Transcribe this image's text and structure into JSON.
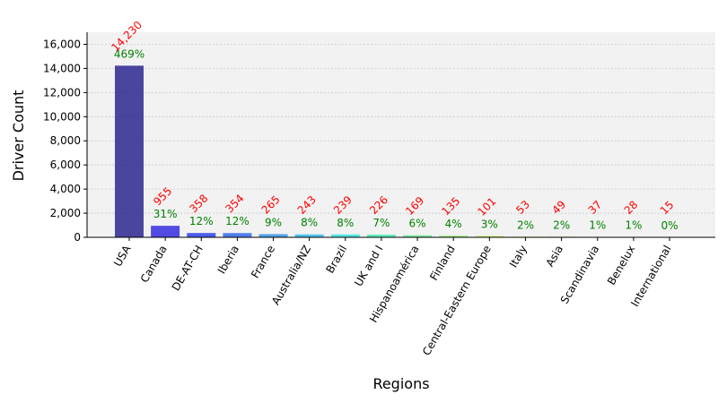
{
  "chart_data": {
    "type": "bar",
    "title": "",
    "xlabel": "Regions",
    "ylabel": "Driver Count",
    "ylim": [
      0,
      17000
    ],
    "yticks": [
      0,
      2000,
      4000,
      6000,
      8000,
      10000,
      12000,
      14000,
      16000
    ],
    "ytick_labels": [
      "0",
      "2,000",
      "4,000",
      "6,000",
      "8,000",
      "10,000",
      "12,000",
      "14,000",
      "16,000"
    ],
    "grid": true,
    "categories": [
      "USA",
      "Canada",
      "DE-AT-CH",
      "Iberia",
      "France",
      "Australia/NZ",
      "Brazil",
      "UK and I",
      "Hispanoamérica",
      "Finland",
      "Central-Eastern Europe",
      "Italy",
      "Asia",
      "Scandinavia",
      "Benelux",
      "International"
    ],
    "values": [
      14230,
      955,
      358,
      354,
      265,
      243,
      239,
      226,
      169,
      135,
      101,
      53,
      49,
      37,
      28,
      15
    ],
    "value_labels": [
      "14,230",
      "955",
      "358",
      "354",
      "265",
      "243",
      "239",
      "226",
      "169",
      "135",
      "101",
      "53",
      "49",
      "37",
      "28",
      "15"
    ],
    "percent_labels": [
      "469%",
      "31%",
      "12%",
      "12%",
      "9%",
      "8%",
      "8%",
      "7%",
      "6%",
      "4%",
      "3%",
      "2%",
      "2%",
      "1%",
      "1%",
      "0%"
    ],
    "bar_colors": [
      "#1f1a8a",
      "#2a1fe0",
      "#2437e8",
      "#2a62e8",
      "#2a8ee8",
      "#27b7e8",
      "#2ae0d8",
      "#3ae8b0",
      "#5ae88a",
      "#8ae860",
      "#b8e83a",
      "#e0e02a",
      "#e8b82a",
      "#e8882a",
      "#d8502a",
      "#b01e1e"
    ],
    "value_label_color": "#ff0000",
    "percent_label_color": "#008000",
    "plot_background": "#f2f2f2"
  }
}
